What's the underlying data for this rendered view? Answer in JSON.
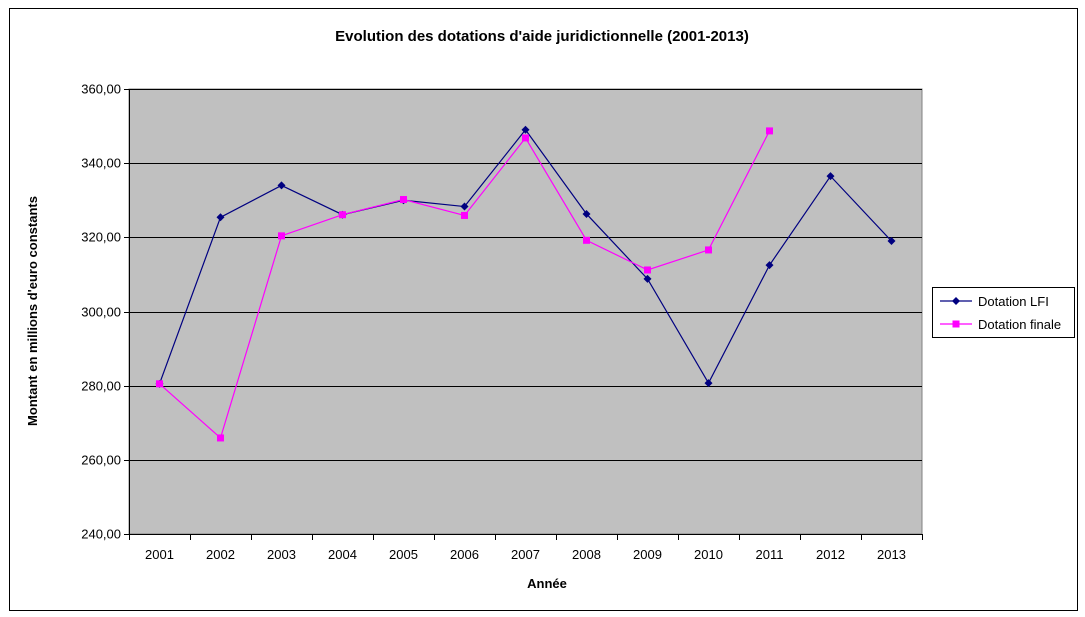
{
  "chart_data": {
    "type": "line",
    "title": "Evolution des dotations d'aide juridictionnelle (2001-2013)",
    "xlabel": "Année",
    "ylabel": "Montant en millions d'euro constants",
    "categories": [
      "2001",
      "2002",
      "2003",
      "2004",
      "2005",
      "2006",
      "2007",
      "2008",
      "2009",
      "2010",
      "2011",
      "2012",
      "2013"
    ],
    "ylim": [
      240,
      360
    ],
    "yticks": [
      240,
      260,
      280,
      300,
      320,
      340,
      360
    ],
    "ytick_labels": [
      "240,00",
      "260,00",
      "280,00",
      "300,00",
      "320,00",
      "340,00",
      "360,00"
    ],
    "grid": true,
    "legend_position": "right",
    "plot_background": "#c0c0c0",
    "series": [
      {
        "name": "Dotation LFI",
        "color": "#000080",
        "marker": "diamond",
        "values": [
          280.5,
          325.4,
          334.0,
          326.1,
          330.0,
          328.3,
          349.0,
          326.3,
          308.8,
          280.7,
          312.5,
          336.5,
          319.0
        ]
      },
      {
        "name": "Dotation finale",
        "color": "#ff00ff",
        "marker": "square",
        "values": [
          280.5,
          265.9,
          320.4,
          326.1,
          330.2,
          325.9,
          346.8,
          319.2,
          311.2,
          316.6,
          348.7,
          null,
          null
        ]
      }
    ]
  }
}
